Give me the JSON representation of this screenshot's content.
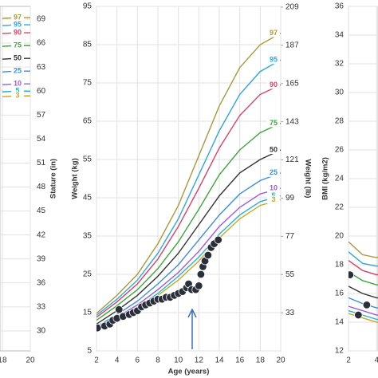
{
  "chart_data": [
    {
      "type": "line",
      "ylabel": "Stature (in)",
      "yaxis_side": "right",
      "curve_labels": true,
      "xlim": [
        17.83,
        20
      ],
      "xticks": [
        18,
        20
      ],
      "ylim": [
        27.5,
        70.6
      ],
      "yticks": [
        69,
        66,
        63,
        60,
        57,
        54,
        51,
        48,
        45,
        42,
        39,
        36,
        33,
        30
      ],
      "grid": true,
      "x": [
        18,
        19,
        20
      ],
      "series": [
        {
          "name": "97",
          "color": "#a89a3c",
          "values": [
            69.1,
            69.2,
            69.2
          ]
        },
        {
          "name": "95",
          "color": "#2ea8e0",
          "values": [
            68.2,
            68.3,
            68.3
          ]
        },
        {
          "name": "90",
          "color": "#d9416a",
          "values": [
            67.2,
            67.3,
            67.3
          ]
        },
        {
          "name": "75",
          "color": "#3aa83a",
          "values": [
            65.6,
            65.7,
            65.7
          ]
        },
        {
          "name": "50",
          "color": "#333333",
          "values": [
            64.0,
            64.1,
            64.1
          ]
        },
        {
          "name": "25",
          "color": "#3b8fd9",
          "values": [
            62.4,
            62.5,
            62.5
          ]
        },
        {
          "name": "10",
          "color": "#a05bd6",
          "values": [
            60.8,
            60.9,
            60.9
          ]
        },
        {
          "name": "5",
          "color": "#27b3d6",
          "values": [
            59.9,
            60.0,
            60.0
          ]
        },
        {
          "name": "3",
          "color": "#c9a820",
          "values": [
            59.3,
            59.4,
            59.4
          ]
        }
      ]
    },
    {
      "type": "line",
      "xlabel": "Age (years)",
      "ylabel": "Weight (kg)",
      "y2label": "Weight (lb)",
      "yaxis_side": "left",
      "curve_labels": true,
      "xlim": [
        2,
        20
      ],
      "xticks": [
        2,
        4,
        6,
        8,
        10,
        12,
        14,
        16,
        18,
        20
      ],
      "ylim": [
        5,
        95
      ],
      "yticks": [
        95,
        85,
        75,
        65,
        55,
        45,
        35,
        25,
        15,
        5
      ],
      "y2lim": [
        11.02,
        209.44
      ],
      "y2ticks": [
        209,
        187,
        165,
        143,
        121,
        99,
        77,
        55,
        33
      ],
      "grid": true,
      "x": [
        2,
        4,
        6,
        8,
        10,
        12,
        14,
        16,
        18,
        20
      ],
      "series": [
        {
          "name": "97",
          "color": "#a89a3c",
          "values": [
            14.8,
            19.5,
            25,
            33,
            43,
            56,
            69,
            79,
            85,
            88
          ]
        },
        {
          "name": "95",
          "color": "#2ea8e0",
          "values": [
            14.3,
            18.5,
            23.5,
            30.5,
            39.5,
            51,
            62.5,
            72,
            78,
            81
          ]
        },
        {
          "name": "90",
          "color": "#d9416a",
          "values": [
            13.8,
            17.8,
            22.5,
            29,
            37.5,
            47.5,
            58,
            66.5,
            72,
            74.5
          ]
        },
        {
          "name": "75",
          "color": "#3aa83a",
          "values": [
            13,
            16.8,
            21,
            26.5,
            33.5,
            42,
            51,
            57.5,
            62,
            64.5
          ]
        },
        {
          "name": "50",
          "color": "#333333",
          "values": [
            12,
            15.5,
            19.5,
            24.5,
            30.5,
            38,
            45.5,
            51.5,
            55,
            57.5
          ]
        },
        {
          "name": "25",
          "color": "#3b8fd9",
          "values": [
            11.3,
            14.5,
            18,
            22.5,
            27.5,
            34,
            40.5,
            46,
            49.5,
            51.5
          ]
        },
        {
          "name": "10",
          "color": "#a05bd6",
          "values": [
            10.8,
            13.8,
            17,
            21,
            25.5,
            31,
            37.5,
            42.5,
            46,
            47.5
          ]
        },
        {
          "name": "5",
          "color": "#27b3d6",
          "values": [
            10.5,
            13.4,
            16.4,
            20,
            24.5,
            29.5,
            35.5,
            40.5,
            44,
            45.5
          ]
        },
        {
          "name": "3",
          "color": "#c9a820",
          "values": [
            10.3,
            13.1,
            16,
            19.5,
            23.5,
            28.5,
            34.5,
            39.5,
            43,
            44.5
          ]
        }
      ],
      "measurements": {
        "color": "#2b2f3a",
        "x": [
          2.1,
          2.8,
          3.3,
          3.6,
          4.0,
          4.2,
          4.6,
          5.2,
          5.6,
          6.0,
          6.4,
          6.8,
          7.2,
          7.6,
          8.0,
          8.4,
          8.8,
          9.2,
          9.6,
          10.0,
          10.4,
          10.8,
          11.0,
          11.3,
          11.7,
          12.0,
          12.2,
          12.4,
          12.6,
          12.9,
          13.2,
          13.5,
          13.9
        ],
        "y": [
          11,
          11.5,
          12,
          13,
          13.5,
          15.8,
          14,
          14.5,
          15,
          15.5,
          16.5,
          17,
          17.5,
          18,
          18.5,
          18.5,
          19,
          19,
          19.5,
          20,
          20.5,
          21.5,
          22.5,
          21,
          21,
          22,
          25,
          27,
          28.5,
          30,
          32,
          33,
          34
        ]
      }
    },
    {
      "type": "line",
      "ylabel": "BMI (kg/m2)",
      "yaxis_side": "left",
      "curve_labels": false,
      "xlim": [
        2,
        4.1
      ],
      "xticks": [
        2,
        4
      ],
      "ylim": [
        12,
        36
      ],
      "yticks": [
        36,
        34,
        32,
        30,
        28,
        26,
        24,
        22,
        20,
        18,
        16,
        14,
        12
      ],
      "grid": true,
      "x": [
        2,
        3,
        4,
        5
      ],
      "series": [
        {
          "name": "97",
          "color": "#a89a3c",
          "values": [
            19.6,
            18.7,
            18.5,
            18.9
          ]
        },
        {
          "name": "95",
          "color": "#2ea8e0",
          "values": [
            18.9,
            18.1,
            17.9,
            18.2
          ]
        },
        {
          "name": "90",
          "color": "#d9416a",
          "values": [
            18.3,
            17.6,
            17.3,
            17.5
          ]
        },
        {
          "name": "75",
          "color": "#3aa83a",
          "values": [
            17.5,
            16.9,
            16.6,
            16.6
          ]
        },
        {
          "name": "50",
          "color": "#333333",
          "values": [
            16.5,
            16.0,
            15.7,
            15.6
          ]
        },
        {
          "name": "25",
          "color": "#3b8fd9",
          "values": [
            15.7,
            15.3,
            15.0,
            14.9
          ]
        },
        {
          "name": "10",
          "color": "#a05bd6",
          "values": [
            15.1,
            14.8,
            14.5,
            14.4
          ]
        },
        {
          "name": "5",
          "color": "#27b3d6",
          "values": [
            14.8,
            14.5,
            14.2,
            14.1
          ]
        },
        {
          "name": "3",
          "color": "#c9a820",
          "values": [
            14.6,
            14.3,
            14.0,
            13.9
          ]
        }
      ],
      "measurements": {
        "color": "#2b2f3a",
        "x": [
          2.1,
          2.7,
          3.3
        ],
        "y": [
          17.3,
          14.5,
          15.2
        ]
      }
    }
  ]
}
